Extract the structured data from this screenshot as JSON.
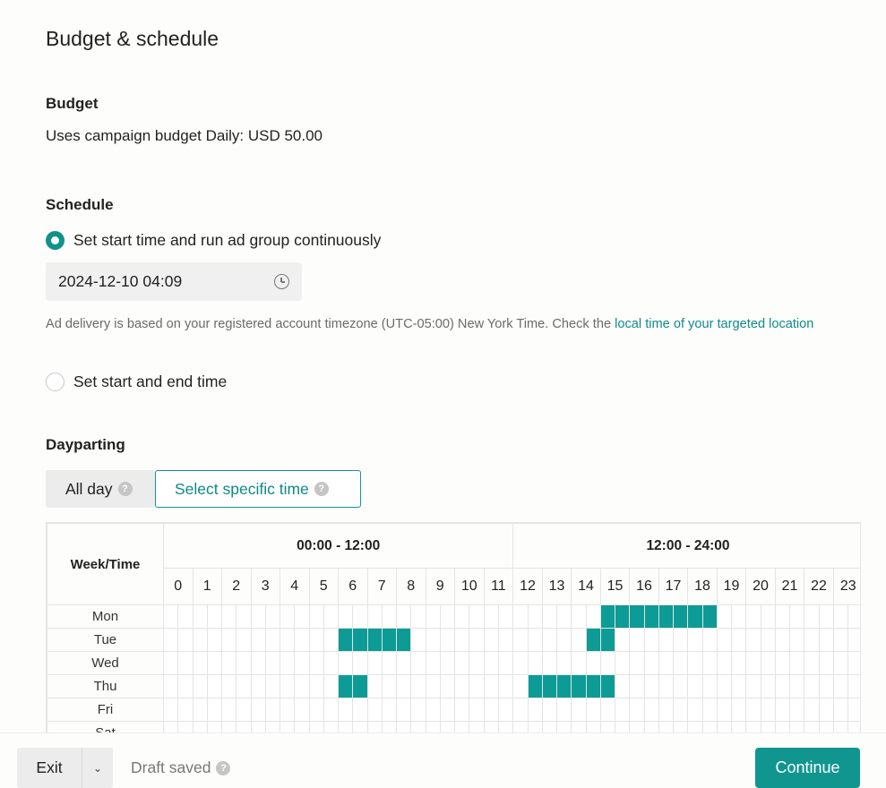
{
  "page": {
    "title": "Budget & schedule"
  },
  "budget": {
    "heading": "Budget",
    "text": "Uses campaign budget Daily: USD 50.00"
  },
  "schedule": {
    "heading": "Schedule",
    "option_continuous": "Set start time and run ad group continuously",
    "start_datetime": "2024-12-10 04:09",
    "note_prefix": "Ad delivery is based on your registered account timezone (UTC-05:00) New York Time. Check the ",
    "note_link": "local time of your targeted location",
    "option_start_end": "Set start and end time",
    "selected_option": "continuous"
  },
  "dayparting": {
    "heading": "Dayparting",
    "tabs": [
      {
        "label": "All day",
        "selected": false
      },
      {
        "label": "Select specific time",
        "selected": true
      }
    ],
    "table": {
      "corner_label": "Week/Time",
      "halves": [
        "00:00 - 12:00",
        "12:00 - 24:00"
      ],
      "hours": [
        "0",
        "1",
        "2",
        "3",
        "4",
        "5",
        "6",
        "7",
        "8",
        "9",
        "10",
        "11",
        "12",
        "13",
        "14",
        "15",
        "16",
        "17",
        "18",
        "19",
        "20",
        "21",
        "22",
        "23"
      ],
      "days": [
        {
          "label": "Mon",
          "selected_slots": [
            30,
            31,
            32,
            33,
            34,
            35,
            36,
            37
          ]
        },
        {
          "label": "Tue",
          "selected_slots": [
            12,
            13,
            14,
            15,
            16,
            29,
            30
          ]
        },
        {
          "label": "Wed",
          "selected_slots": []
        },
        {
          "label": "Thu",
          "selected_slots": [
            12,
            13,
            25,
            26,
            27,
            28,
            29,
            30
          ]
        },
        {
          "label": "Fri",
          "selected_slots": []
        },
        {
          "label": "Sat",
          "selected_slots": []
        }
      ],
      "slots_per_day": 48
    },
    "accent_color": "#0d9b96"
  },
  "footer": {
    "exit_label": "Exit",
    "draft_status": "Draft saved",
    "continue_label": "Continue"
  }
}
